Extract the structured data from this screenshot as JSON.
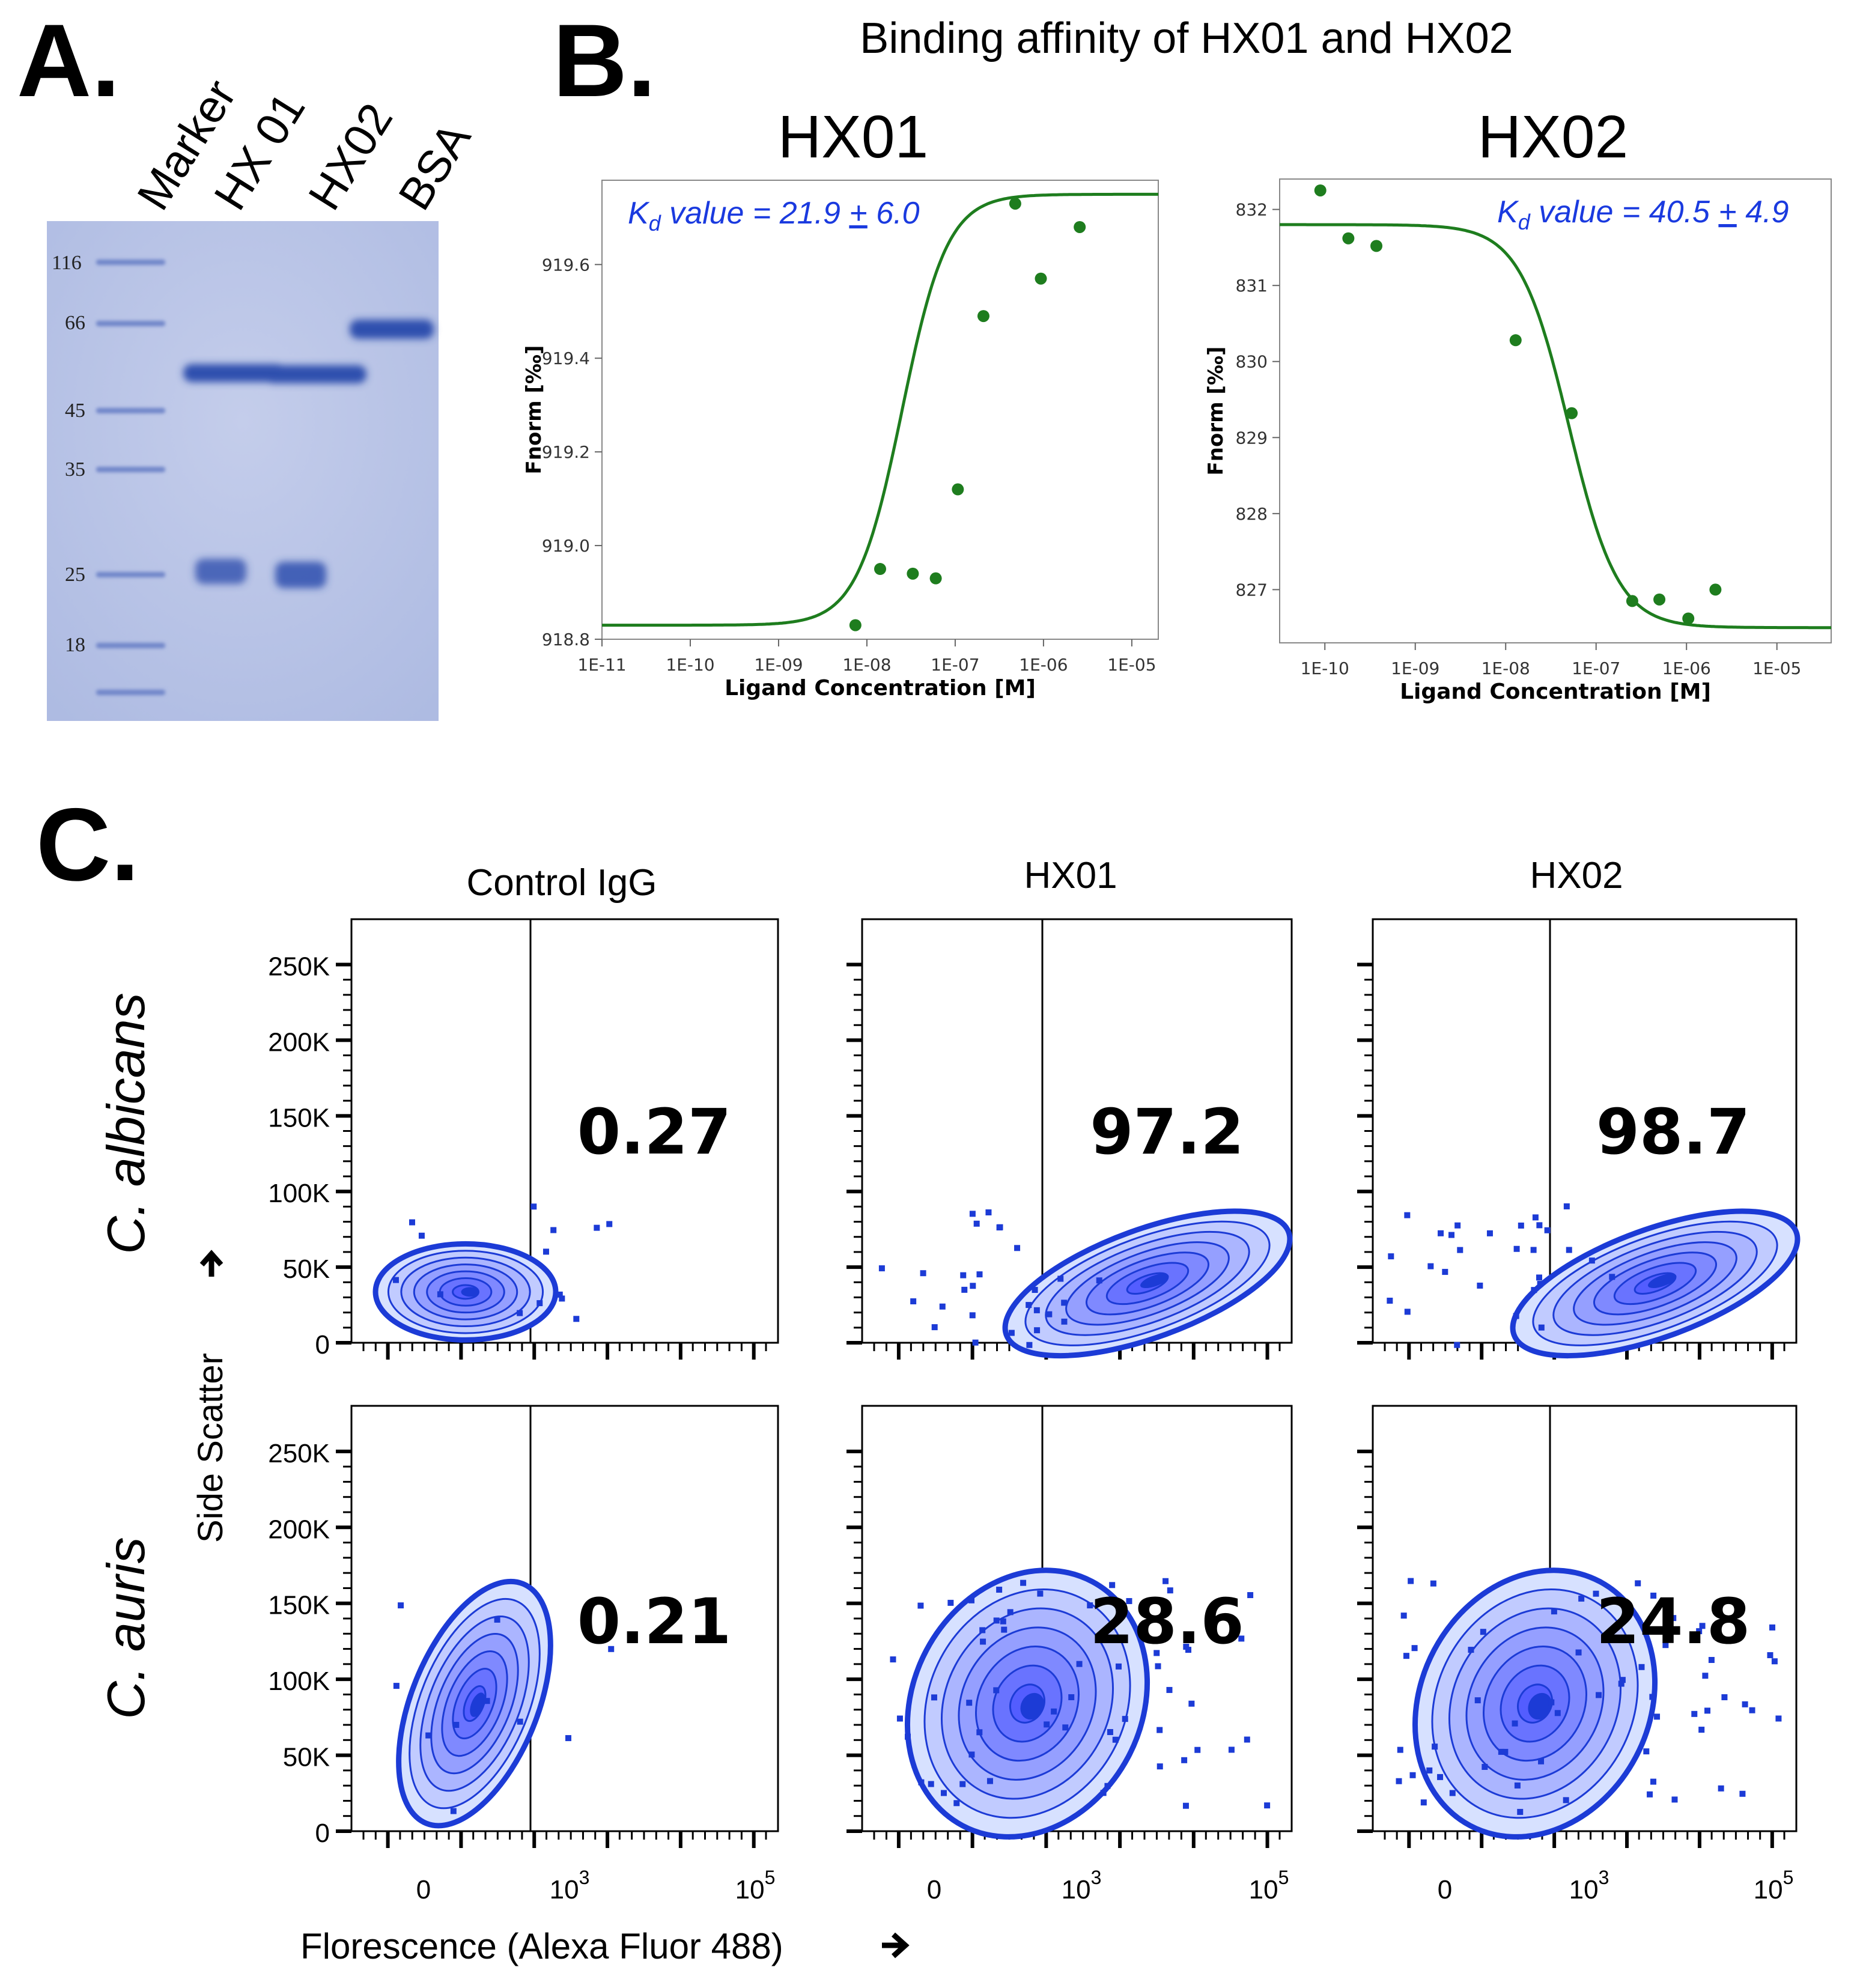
{
  "panel_a": {
    "label": "A.",
    "lanes": [
      "Marker",
      "HX 01",
      "HX02",
      "BSA"
    ],
    "marker_kda": [
      "116",
      "66",
      "45",
      "35",
      "25",
      "18"
    ]
  },
  "panel_b": {
    "label": "B.",
    "title": "Binding affinity of HX01 and HX02"
  },
  "panel_c": {
    "label": "C.",
    "columns": [
      "Control IgG",
      "HX01",
      "HX02"
    ],
    "rows": [
      "C. albicans",
      "C. auris"
    ],
    "y_axis_label": "Side Scatter",
    "x_axis_label": "Florescence (Alexa Fluor 488)",
    "y_ticks": [
      "250K",
      "200K",
      "150K",
      "100K",
      "50K",
      "0"
    ],
    "x_ticks": [
      "0",
      "10",
      "10"
    ],
    "x_tick_exponents": [
      "3",
      "5"
    ],
    "percentages": [
      [
        "0.27",
        "97.2",
        "98.7"
      ],
      [
        "0.21",
        "28.6",
        "24.8"
      ]
    ]
  },
  "colors": {
    "gel_bg": "#bcc6e8",
    "band": "#2f4fae",
    "fit": "#1e7d1e",
    "kd_text": "#1a3adf",
    "flow": "#1c3bd6"
  },
  "chart_data": [
    {
      "type": "scatter",
      "title": "HX01",
      "annotation": "Kd value = 21.9 ± 6.0",
      "kd_parts": {
        "k": "K",
        "sub": "d",
        "rest": " value = 21.9 ",
        "pm": "+",
        "tail": " 6.0"
      },
      "xlabel": "Ligand Concentration [M]",
      "ylabel": "Fnorm [‰]",
      "x_log10": [
        -8.13,
        -7.85,
        -7.48,
        -7.22,
        -6.97,
        -6.68,
        -6.32,
        -6.03,
        -5.59
      ],
      "y": [
        918.83,
        918.95,
        918.94,
        918.93,
        919.12,
        919.49,
        919.73,
        919.57,
        919.68
      ],
      "fit": {
        "bottom": 918.83,
        "top": 919.75,
        "ec50_log10": -7.6,
        "hill": 1.7
      },
      "xlim_log10": [
        -11,
        -4.7
      ],
      "ylim": [
        918.8,
        919.78
      ],
      "xticks": [
        "1E-11",
        "1E-10",
        "1E-09",
        "1E-08",
        "1E-07",
        "1E-06",
        "1E-05"
      ],
      "yticks": [
        "918.8",
        "919.0",
        "919.2",
        "919.4",
        "919.6"
      ]
    },
    {
      "type": "scatter",
      "title": "HX02",
      "annotation": "Kd value = 40.5 ± 4.9",
      "kd_parts": {
        "k": "K",
        "sub": "d",
        "rest": " value = 40.5 ",
        "pm": "+",
        "tail": " 4.9"
      },
      "xlabel": "Ligand Concentration [M]",
      "ylabel": "Fnorm [‰]",
      "x_log10": [
        -10.05,
        -9.74,
        -9.43,
        -7.89,
        -7.27,
        -6.6,
        -6.3,
        -5.98,
        -5.68
      ],
      "y": [
        832.25,
        831.62,
        831.52,
        830.28,
        829.32,
        826.85,
        826.87,
        826.62,
        827.0
      ],
      "fit": {
        "bottom": 826.5,
        "top": 831.8,
        "ec50_log10": -7.3,
        "hill": -1.6
      },
      "xlim_log10": [
        -10.5,
        -4.4
      ],
      "ylim": [
        826.3,
        832.4
      ],
      "xticks": [
        "1E-10",
        "1E-09",
        "1E-08",
        "1E-07",
        "1E-06",
        "1E-05"
      ],
      "yticks": [
        "827",
        "828",
        "829",
        "830",
        "831",
        "832"
      ]
    }
  ]
}
